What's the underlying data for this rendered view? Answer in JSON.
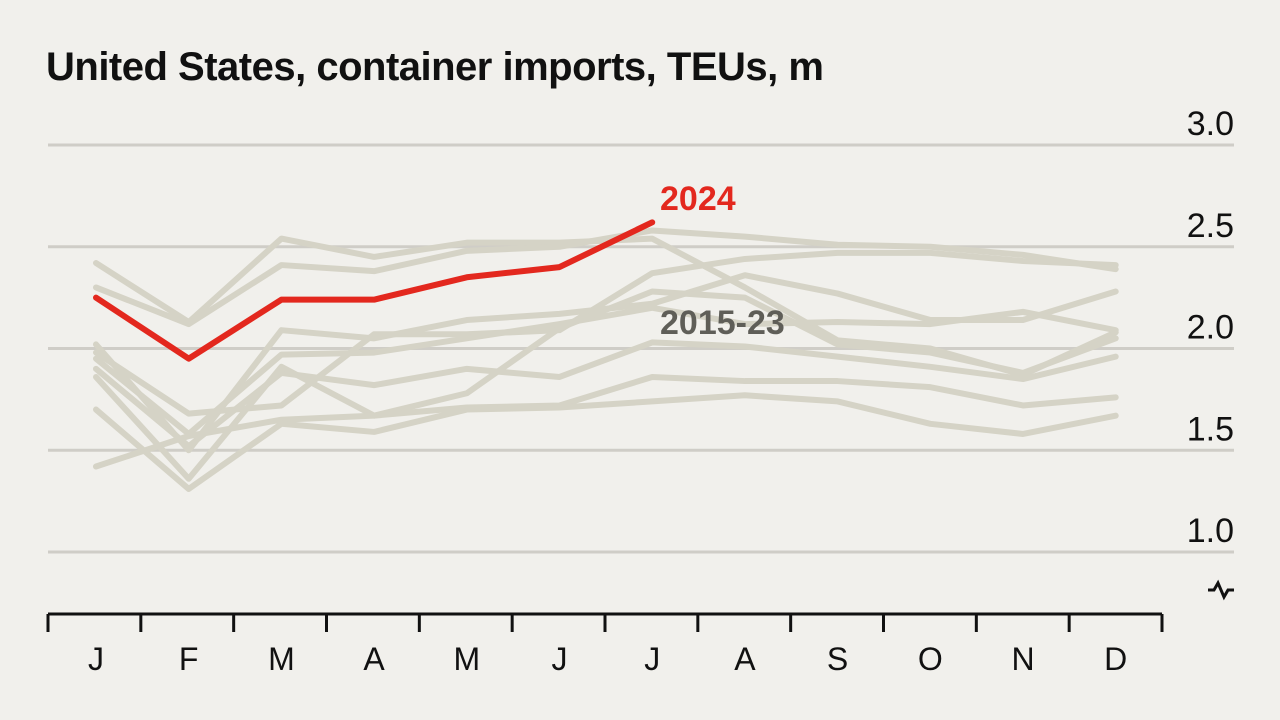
{
  "chart_data": {
    "type": "line",
    "title": "United States, container imports, TEUs, m",
    "xlabel": "",
    "ylabel": "",
    "categories": [
      "J",
      "F",
      "M",
      "A",
      "M",
      "J",
      "J",
      "A",
      "S",
      "O",
      "N",
      "D"
    ],
    "ylim": [
      0.8,
      3.0
    ],
    "yticks": [
      1.0,
      1.5,
      2.0,
      2.5,
      3.0
    ],
    "ytick_labels": [
      "1.0",
      "1.5",
      "2.0",
      "2.5",
      "3.0"
    ],
    "axis_break": true,
    "grid": true,
    "series": [
      {
        "name": "2024",
        "color": "#e3281e",
        "label": "2024",
        "values": [
          2.25,
          1.95,
          2.24,
          2.24,
          2.35,
          2.4,
          2.62,
          null,
          null,
          null,
          null,
          null
        ]
      },
      {
        "name": "",
        "color": "#d5d3c6",
        "values": [
          2.42,
          2.13,
          2.54,
          2.45,
          2.52,
          2.52,
          2.54,
          2.3,
          2.04,
          2.0,
          1.87,
          2.08
        ]
      },
      {
        "name": "",
        "color": "#d5d3c6",
        "values": [
          2.3,
          2.12,
          2.41,
          2.38,
          2.48,
          2.5,
          2.58,
          2.55,
          2.51,
          2.5,
          2.46,
          2.39
        ]
      },
      {
        "name": "",
        "color": "#d5d3c6",
        "values": [
          2.02,
          1.5,
          2.09,
          2.05,
          2.14,
          2.17,
          2.22,
          2.36,
          2.27,
          2.14,
          2.14,
          2.28
        ]
      },
      {
        "name": "",
        "color": "#d5d3c6",
        "values": [
          1.98,
          1.68,
          1.72,
          2.07,
          2.07,
          2.09,
          2.37,
          2.44,
          2.47,
          2.47,
          2.43,
          2.41
        ]
      },
      {
        "name": "",
        "color": "#d5d3c6",
        "values": [
          1.95,
          1.58,
          1.97,
          1.98,
          2.05,
          2.12,
          2.2,
          2.12,
          2.13,
          2.12,
          2.18,
          2.09
        ]
      },
      {
        "name": "",
        "color": "#d5d3c6",
        "values": [
          1.9,
          1.52,
          1.88,
          1.82,
          1.9,
          1.86,
          2.03,
          2.01,
          1.96,
          1.91,
          1.85,
          1.96
        ]
      },
      {
        "name": "",
        "color": "#d5d3c6",
        "values": [
          1.86,
          1.36,
          1.91,
          1.67,
          1.78,
          2.1,
          2.28,
          2.25,
          2.02,
          1.98,
          1.88,
          2.05
        ]
      },
      {
        "name": "",
        "color": "#d5d3c6",
        "values": [
          1.42,
          1.57,
          1.65,
          1.67,
          1.71,
          1.72,
          1.86,
          1.84,
          1.84,
          1.81,
          1.72,
          1.76
        ]
      },
      {
        "name": "",
        "color": "#d5d3c6",
        "values": [
          1.7,
          1.31,
          1.63,
          1.59,
          1.7,
          1.71,
          1.74,
          1.77,
          1.74,
          1.63,
          1.58,
          1.67
        ]
      }
    ],
    "annotations": [
      {
        "text": "2024",
        "color": "#e3281e"
      },
      {
        "text": "2015-23",
        "color": "#5f5e58"
      }
    ]
  }
}
